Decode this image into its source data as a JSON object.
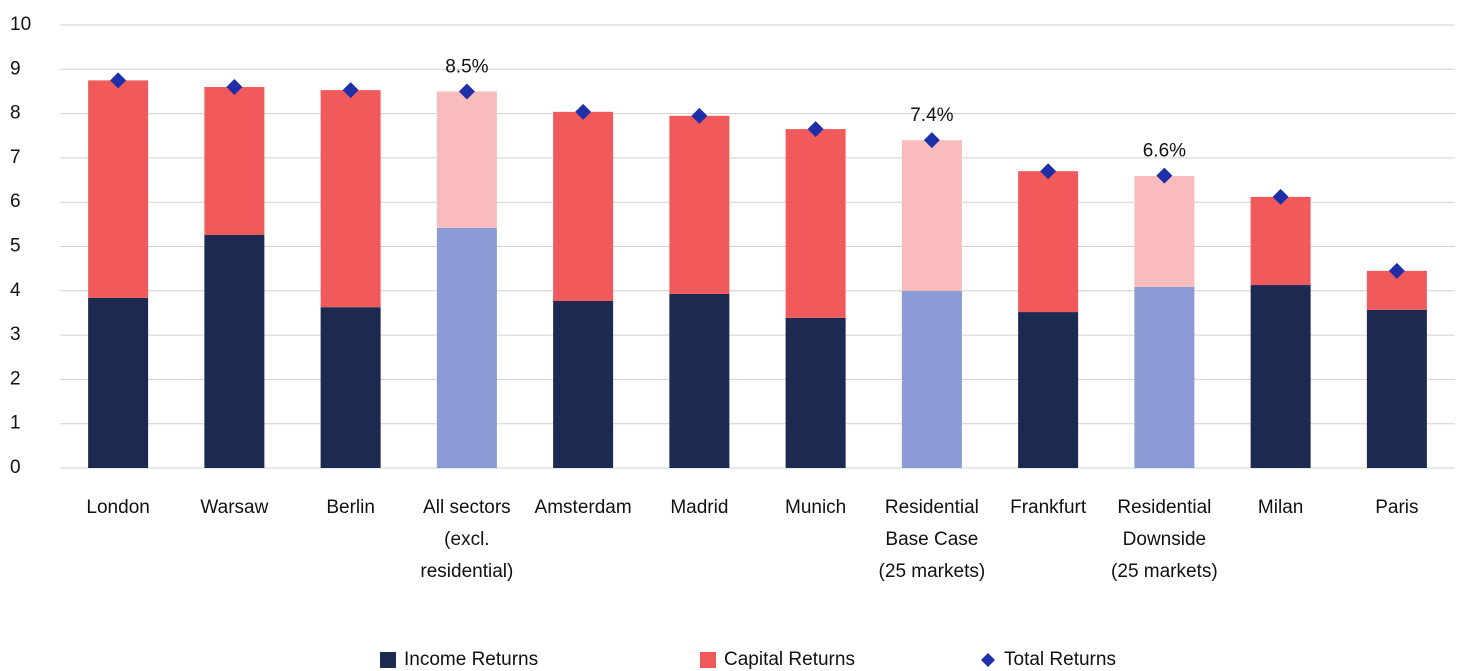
{
  "chart_data": {
    "type": "stacked_bar",
    "categories": [
      "London",
      "Warsaw",
      "Berlin",
      "All sectors (excl. residential)",
      "Amsterdam",
      "Madrid",
      "Munich",
      "Residential Base Case (25 markets)",
      "Frankfurt",
      "Residential Downside (25 markets)",
      "Milan",
      "Paris"
    ],
    "highlighted": [
      false,
      false,
      false,
      true,
      false,
      false,
      false,
      true,
      false,
      true,
      false,
      false
    ],
    "series": [
      {
        "name": "Income Returns",
        "color": "#1c2951",
        "highlight_color": "#8a9bd6",
        "values": [
          3.84,
          5.26,
          3.63,
          5.42,
          3.77,
          3.93,
          3.39,
          4.0,
          3.52,
          4.09,
          4.13,
          3.57
        ]
      },
      {
        "name": "Capital Returns",
        "color": "#f05a5a",
        "highlight_color": "#f8bcbc",
        "values": [
          4.91,
          3.34,
          4.9,
          3.08,
          4.27,
          4.02,
          4.26,
          3.4,
          3.18,
          2.5,
          1.99,
          0.88
        ]
      },
      {
        "name": "Total Returns",
        "type": "marker",
        "color": "#1f2fa8",
        "values": [
          8.75,
          8.6,
          8.53,
          8.5,
          8.04,
          7.95,
          7.65,
          7.4,
          6.7,
          6.6,
          6.12,
          4.45
        ],
        "value_labels": [
          null,
          null,
          null,
          "8.5%",
          null,
          null,
          null,
          "7.4%",
          null,
          "6.6%",
          null,
          null
        ]
      }
    ],
    "ylim": [
      0,
      10
    ],
    "yticks": [
      0,
      1,
      2,
      3,
      4,
      5,
      6,
      7,
      8,
      9,
      10
    ],
    "grid": true,
    "legend": "bottom"
  }
}
